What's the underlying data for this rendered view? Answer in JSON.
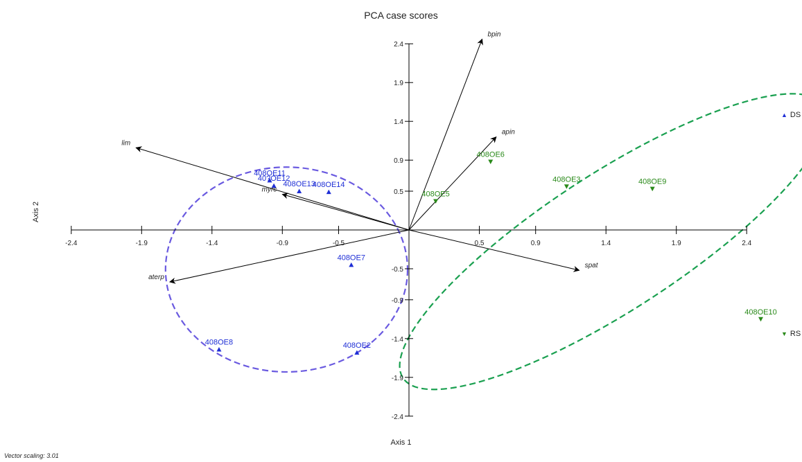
{
  "chart_data": {
    "type": "scatter",
    "title": "PCA case scores",
    "xlabel": "Axis 1",
    "ylabel": "Axis 2",
    "footnote": "Vector scaling: 3.01",
    "xlim": [
      -2.4,
      2.4
    ],
    "ylim": [
      -2.4,
      2.4
    ],
    "xticks": [
      -2.4,
      -1.9,
      -1.4,
      -0.9,
      -0.5,
      0.5,
      0.9,
      1.4,
      1.9,
      2.4
    ],
    "yticks": [
      2.4,
      1.9,
      1.4,
      0.9,
      0.5,
      -0.5,
      -0.9,
      -1.4,
      -1.9,
      -2.4
    ],
    "xtick_labels": [
      "-2.4",
      "-1.9",
      "-1.4",
      "-0.9",
      "-0.5",
      "0.5",
      "0.9",
      "1.4",
      "1.9",
      "2.4"
    ],
    "ytick_labels": [
      "2.4",
      "1.9",
      "1.4",
      "0.9",
      "0.5",
      "-0.5",
      "-0.9",
      "-1.4",
      "-1.9",
      "-2.4"
    ],
    "series": [
      {
        "name": "DS",
        "color": "#1f2fd6",
        "marker": "triangle-up",
        "points": [
          {
            "label": "408OE11",
            "x": -0.99,
            "y": 0.64
          },
          {
            "label": "40?OE12",
            "x": -0.96,
            "y": 0.57
          },
          {
            "label": "408OE13",
            "x": -0.78,
            "y": 0.5
          },
          {
            "label": "408OE14",
            "x": -0.57,
            "y": 0.49
          },
          {
            "label": "408OE7",
            "x": -0.41,
            "y": -0.45
          },
          {
            "label": "408OE8",
            "x": -1.35,
            "y": -1.54
          },
          {
            "label": "408OE2",
            "x": -0.37,
            "y": -1.58
          }
        ]
      },
      {
        "name": "RS",
        "color": "#2a8a1a",
        "marker": "triangle-down",
        "points": [
          {
            "label": "408OE6",
            "x": 0.58,
            "y": 0.88
          },
          {
            "label": "408OE3",
            "x": 1.12,
            "y": 0.56
          },
          {
            "label": "408OE9",
            "x": 1.73,
            "y": 0.53
          },
          {
            "label": "408OE5",
            "x": 0.19,
            "y": 0.37
          },
          {
            "label": "408OE10",
            "x": 2.5,
            "y": -1.15
          }
        ]
      }
    ],
    "vectors": [
      {
        "label": "bpin",
        "x": 0.52,
        "y": 2.46
      },
      {
        "label": "apin",
        "x": 0.62,
        "y": 1.2
      },
      {
        "label": "lim",
        "x": -1.94,
        "y": 1.06
      },
      {
        "label": "myrc",
        "x": -0.9,
        "y": 0.46
      },
      {
        "label": "aterp",
        "x": -1.7,
        "y": -0.67
      },
      {
        "label": "spat",
        "x": 1.21,
        "y": -0.52
      }
    ],
    "ellipses": [
      {
        "group": "DS",
        "color": "#6a5ae0",
        "cx": -0.87,
        "cy": -0.51,
        "rx": 0.86,
        "ry": 1.32,
        "rotation_deg": 0
      },
      {
        "group": "RS",
        "color": "#1aa050",
        "cx": 1.45,
        "cy": -0.15,
        "rx": 1.78,
        "ry": 0.88,
        "rotation_deg": 33
      }
    ],
    "legend": [
      {
        "name": "DS",
        "symbol": "▲",
        "color": "#1f2fd6"
      },
      {
        "name": "RS",
        "symbol": "▼",
        "color": "#2a8a1a"
      }
    ],
    "legend_position": "right"
  }
}
